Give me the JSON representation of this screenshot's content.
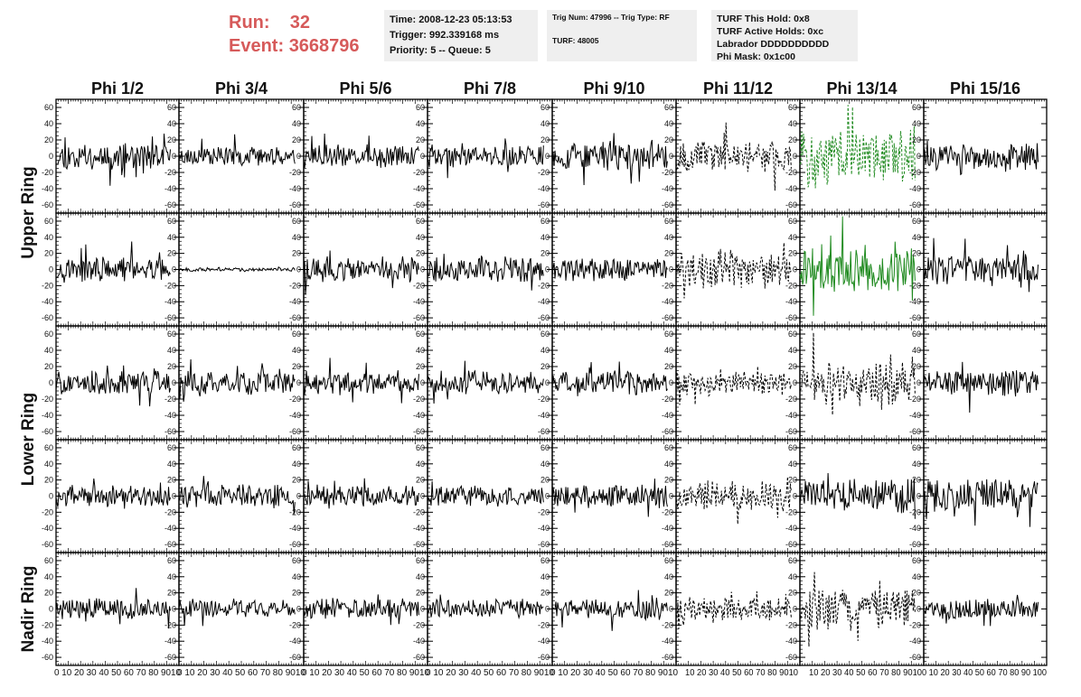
{
  "header": {
    "run_label": "Run:",
    "run_value": "32",
    "event_label": "Event:",
    "event_value": "3668796",
    "accent_color": "#d65a5a"
  },
  "info_time": {
    "time": "Time: 2008-12-23 05:13:53",
    "trigger": "Trigger: 992.339168 ms",
    "priority": "Priority: 5 -- Queue: 5"
  },
  "info_trig": {
    "trig": "Trig Num: 47996 -- Trig Type: RF",
    "turf": "TURF: 48005"
  },
  "info_turf": {
    "hold": "TURF This Hold: 0x8",
    "active": "TURF Active Holds: 0xc",
    "labrador": "Labrador DDDDDDDDDD",
    "phimask": "Phi Mask: 0x1c00"
  },
  "chart_data": {
    "type": "line",
    "columns": [
      "Phi 1/2",
      "Phi 3/4",
      "Phi 5/6",
      "Phi 7/8",
      "Phi 9/10",
      "Phi 11/12",
      "Phi 13/14",
      "Phi 15/16"
    ],
    "rows": [
      "Upper Ring",
      "Upper Ring",
      "Lower Ring",
      "Lower Ring",
      "Nadir Ring"
    ],
    "row_titles": [
      "Upper Ring",
      "Lower Ring",
      "Nadir Ring"
    ],
    "xlim": [
      0,
      100
    ],
    "ylim": [
      -70,
      70
    ],
    "y_ticks": [
      60,
      40,
      20,
      0,
      -20,
      -40,
      -60
    ],
    "x_ticks": [
      0,
      10,
      20,
      30,
      40,
      50,
      60,
      70,
      80,
      90,
      100
    ],
    "x_tick_label_strings": [
      "0 10 20 30 40 50 60 70 80 9010",
      "0 10 20 30 40 50 60 70 80 9010",
      "0 10 20 30 40 50 60 70 80 9010",
      "0 10 20 30 40 50 60 70 80 9010",
      "0 10 20 30 40 50 60 70 80 9010",
      "10 20 30 40 50 60 70 80 9010",
      "10 20 30 40 50 60 70 80 9010",
      "0 10 20 30 40 50 60 70 80 90 100"
    ],
    "trace_colors": {
      "normal": "#000000",
      "triggered": "#1f8a1f"
    },
    "trace_styles": [
      [
        "solid",
        "solid",
        "solid",
        "solid",
        "solid",
        "dashed",
        "dashed",
        "solid"
      ],
      [
        "solid",
        "solid",
        "solid",
        "solid",
        "solid",
        "dashed",
        "solid",
        "solid"
      ],
      [
        "solid",
        "solid",
        "solid",
        "solid",
        "solid",
        "dashed",
        "dashed",
        "solid"
      ],
      [
        "solid",
        "solid",
        "solid",
        "solid",
        "solid",
        "dashed",
        "solid",
        "solid"
      ],
      [
        "solid",
        "solid",
        "solid",
        "solid",
        "solid",
        "dashed",
        "dashed",
        "solid"
      ]
    ],
    "trace_color_keys": [
      [
        "normal",
        "normal",
        "normal",
        "normal",
        "normal",
        "normal",
        "triggered",
        "normal"
      ],
      [
        "normal",
        "normal",
        "normal",
        "normal",
        "normal",
        "normal",
        "triggered",
        "normal"
      ],
      [
        "normal",
        "normal",
        "normal",
        "normal",
        "normal",
        "normal",
        "normal",
        "normal"
      ],
      [
        "normal",
        "normal",
        "normal",
        "normal",
        "normal",
        "normal",
        "normal",
        "normal"
      ],
      [
        "normal",
        "normal",
        "normal",
        "normal",
        "normal",
        "normal",
        "normal",
        "normal"
      ]
    ],
    "trace_amplitudes": [
      [
        14,
        10,
        12,
        12,
        15,
        16,
        30,
        14
      ],
      [
        13,
        2,
        13,
        14,
        12,
        20,
        24,
        15
      ],
      [
        13,
        12,
        12,
        12,
        12,
        13,
        24,
        14
      ],
      [
        11,
        12,
        12,
        11,
        11,
        16,
        18,
        18
      ],
      [
        11,
        10,
        11,
        10,
        11,
        14,
        22,
        11
      ]
    ],
    "trace_seeds": [
      [
        11,
        23,
        37,
        41,
        53,
        67,
        71,
        83
      ],
      [
        97,
        101,
        113,
        127,
        131,
        139,
        149,
        151
      ],
      [
        163,
        173,
        181,
        191,
        193,
        197,
        211,
        223
      ],
      [
        227,
        233,
        239,
        241,
        251,
        257,
        263,
        269
      ],
      [
        271,
        277,
        281,
        283,
        293,
        307,
        311,
        313
      ]
    ]
  }
}
